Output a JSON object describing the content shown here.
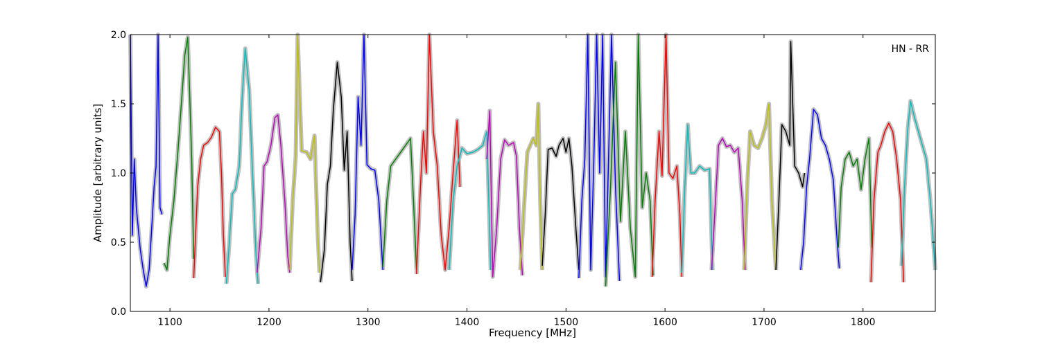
{
  "chart_data": {
    "type": "line",
    "title": "",
    "xlabel": "Frequency [MHz]",
    "ylabel": "Amplitude [arbitrary units]",
    "xlim": [
      1060,
      1873
    ],
    "ylim": [
      0.0,
      2.0
    ],
    "xticks": [
      1100,
      1200,
      1300,
      1400,
      1500,
      1600,
      1700,
      1800
    ],
    "xtick_labels": [
      "1100",
      "1200",
      "1300",
      "1400",
      "1500",
      "1600",
      "1700",
      "1800"
    ],
    "yticks": [
      0.0,
      0.5,
      1.0,
      1.5,
      2.0
    ],
    "ytick_labels": [
      "0.0",
      "0.5",
      "1.0",
      "1.5",
      "2.0"
    ],
    "grid": false,
    "annotation": "HN - RR",
    "annotation_position": "top-right",
    "background_series_color": "#bfbfbf",
    "series": [
      {
        "color": "#0000ff",
        "x": [
          1060,
          1062,
          1064,
          1066,
          1070,
          1073,
          1076,
          1079,
          1082,
          1084,
          1086,
          1088,
          1090,
          1092
        ],
        "y": [
          2.0,
          0.55,
          1.1,
          0.75,
          0.45,
          0.3,
          0.18,
          0.3,
          0.65,
          0.9,
          1.05,
          2.0,
          0.75,
          0.7
        ]
      },
      {
        "color": "#008000",
        "x": [
          1094,
          1097,
          1100,
          1104,
          1108,
          1112,
          1115,
          1118,
          1120,
          1122,
          1124
        ],
        "y": [
          0.35,
          0.3,
          0.55,
          0.8,
          1.15,
          1.55,
          1.85,
          1.98,
          1.55,
          1.1,
          0.38
        ]
      },
      {
        "color": "#ff0000",
        "x": [
          1124,
          1128,
          1131,
          1134,
          1138,
          1142,
          1146,
          1150,
          1152,
          1154,
          1156
        ],
        "y": [
          0.24,
          0.9,
          1.1,
          1.2,
          1.22,
          1.26,
          1.33,
          1.3,
          1.0,
          0.55,
          0.25
        ]
      },
      {
        "color": "#00bfbf",
        "x": [
          1157,
          1160,
          1163,
          1166,
          1170,
          1173,
          1176,
          1180,
          1184,
          1187,
          1189
        ],
        "y": [
          0.2,
          0.5,
          0.85,
          0.88,
          1.05,
          1.55,
          1.9,
          1.6,
          0.9,
          0.4,
          0.2
        ]
      },
      {
        "color": "#bf00bf",
        "x": [
          1188,
          1192,
          1195,
          1198,
          1202,
          1206,
          1209,
          1212,
          1216,
          1219,
          1221
        ],
        "y": [
          0.28,
          0.6,
          1.05,
          1.08,
          1.2,
          1.4,
          1.42,
          1.2,
          0.8,
          0.4,
          0.28
        ]
      },
      {
        "color": "#bfbf00",
        "x": [
          1221,
          1224,
          1227,
          1229,
          1233,
          1238,
          1242,
          1246,
          1249,
          1251
        ],
        "y": [
          0.3,
          0.8,
          1.12,
          2.0,
          1.16,
          1.15,
          1.1,
          1.27,
          0.6,
          0.28
        ]
      },
      {
        "color": "#000000",
        "x": [
          1252,
          1256,
          1259,
          1262,
          1265,
          1269,
          1273,
          1276,
          1279,
          1282,
          1284
        ],
        "y": [
          0.21,
          0.45,
          0.92,
          1.05,
          1.45,
          1.8,
          1.55,
          1.02,
          1.3,
          0.5,
          0.22
        ]
      },
      {
        "color": "#0000ff",
        "x": [
          1284,
          1287,
          1290,
          1293,
          1296,
          1299,
          1303,
          1307,
          1311,
          1315
        ],
        "y": [
          0.3,
          0.7,
          1.55,
          1.2,
          2.0,
          1.06,
          1.03,
          1.02,
          0.8,
          0.3
        ]
      },
      {
        "color": "#008000",
        "x": [
          1315,
          1319,
          1323,
          1328,
          1333,
          1338,
          1343,
          1346,
          1349
        ],
        "y": [
          0.32,
          0.8,
          1.05,
          1.1,
          1.15,
          1.2,
          1.25,
          0.8,
          0.3
        ]
      },
      {
        "color": "#ff0000",
        "x": [
          1349,
          1353,
          1356,
          1359,
          1362,
          1366,
          1370,
          1374,
          1378,
          1382,
          1386,
          1390,
          1393
        ],
        "y": [
          0.27,
          0.9,
          1.3,
          1.0,
          2.0,
          1.3,
          1.05,
          0.55,
          0.3,
          0.6,
          1.0,
          1.38,
          0.9
        ]
      },
      {
        "color": "#00bfbf",
        "x": [
          1382,
          1386,
          1390,
          1395,
          1400,
          1406,
          1411,
          1416,
          1420,
          1422,
          1424
        ],
        "y": [
          0.3,
          0.8,
          1.05,
          1.18,
          1.14,
          1.15,
          1.17,
          1.2,
          1.3,
          0.8,
          0.3
        ]
      },
      {
        "color": "#bf00bf",
        "x": [
          1420,
          1423,
          1426,
          1430,
          1434,
          1438,
          1442,
          1447,
          1450,
          1453,
          1456
        ],
        "y": [
          1.1,
          1.45,
          0.25,
          0.6,
          1.1,
          1.24,
          1.2,
          1.22,
          1.12,
          0.6,
          0.26
        ]
      },
      {
        "color": "#bfbf00",
        "x": [
          1454,
          1458,
          1461,
          1464,
          1467,
          1470,
          1472,
          1474,
          1476
        ],
        "y": [
          0.3,
          0.8,
          1.15,
          1.2,
          1.25,
          1.2,
          1.5,
          0.8,
          0.3
        ]
      },
      {
        "color": "#000000",
        "x": [
          1476,
          1479,
          1482,
          1486,
          1490,
          1493,
          1497,
          1500,
          1503,
          1506,
          1510,
          1513
        ],
        "y": [
          0.33,
          0.7,
          1.17,
          1.18,
          1.12,
          1.2,
          1.25,
          1.15,
          1.25,
          1.05,
          0.6,
          0.3
        ]
      },
      {
        "color": "#0000ff",
        "x": [
          1513,
          1516,
          1519,
          1522,
          1525,
          1528,
          1531,
          1534,
          1537,
          1540,
          1543,
          1546,
          1550,
          1554
        ],
        "y": [
          0.24,
          0.8,
          1.1,
          2.0,
          0.3,
          1.05,
          2.0,
          1.0,
          2.0,
          0.25,
          1.1,
          2.0,
          0.9,
          0.22
        ]
      },
      {
        "color": "#008000",
        "x": [
          1540,
          1545,
          1550,
          1555,
          1560,
          1565,
          1570,
          1573,
          1577,
          1581,
          1585,
          1588
        ],
        "y": [
          0.18,
          0.9,
          1.8,
          0.65,
          1.3,
          0.6,
          0.25,
          2.0,
          0.75,
          1.0,
          0.8,
          0.26
        ]
      },
      {
        "color": "#ff0000",
        "x": [
          1587,
          1590,
          1594,
          1597,
          1601,
          1604,
          1608,
          1612,
          1615,
          1617
        ],
        "y": [
          0.25,
          0.8,
          1.3,
          0.98,
          2.0,
          1.0,
          0.96,
          1.05,
          0.7,
          0.25
        ]
      },
      {
        "color": "#00bfbf",
        "x": [
          1617,
          1620,
          1623,
          1626,
          1630,
          1635,
          1640,
          1645,
          1648
        ],
        "y": [
          0.28,
          0.9,
          1.35,
          1.0,
          1.0,
          1.05,
          1.02,
          1.03,
          0.3
        ]
      },
      {
        "color": "#bf00bf",
        "x": [
          1647,
          1651,
          1654,
          1658,
          1662,
          1666,
          1670,
          1674,
          1678,
          1681
        ],
        "y": [
          0.3,
          0.8,
          1.2,
          1.25,
          1.19,
          1.2,
          1.15,
          1.18,
          0.8,
          0.3
        ]
      },
      {
        "color": "#bfbf00",
        "x": [
          1680,
          1683,
          1686,
          1690,
          1694,
          1698,
          1702,
          1705,
          1708,
          1712
        ],
        "y": [
          0.3,
          0.9,
          1.3,
          1.2,
          1.18,
          1.25,
          1.35,
          1.5,
          0.8,
          0.3
        ]
      },
      {
        "color": "#000000",
        "x": [
          1712,
          1715,
          1718,
          1722,
          1726,
          1727,
          1731,
          1735,
          1739,
          1741
        ],
        "y": [
          0.3,
          0.8,
          1.35,
          1.3,
          1.2,
          1.95,
          1.05,
          1.0,
          0.9,
          1.0
        ]
      },
      {
        "color": "#0000ff",
        "x": [
          1737,
          1740,
          1743,
          1746,
          1750,
          1754,
          1758,
          1762,
          1766,
          1770,
          1774,
          1776
        ],
        "y": [
          0.3,
          0.5,
          0.9,
          1.1,
          1.46,
          1.42,
          1.25,
          1.2,
          1.1,
          0.95,
          0.5,
          0.31
        ]
      },
      {
        "color": "#008000",
        "x": [
          1775,
          1778,
          1782,
          1786,
          1790,
          1794,
          1798,
          1802,
          1806,
          1809
        ],
        "y": [
          0.46,
          0.9,
          1.1,
          1.15,
          1.05,
          1.1,
          0.88,
          1.1,
          1.25,
          0.46
        ]
      },
      {
        "color": "#ff0000",
        "x": [
          1808,
          1811,
          1815,
          1818,
          1822,
          1826,
          1830,
          1834,
          1838,
          1841
        ],
        "y": [
          0.21,
          0.8,
          1.15,
          1.2,
          1.3,
          1.36,
          1.3,
          1.1,
          0.8,
          0.21
        ]
      },
      {
        "color": "#00bfbf",
        "x": [
          1839,
          1842,
          1845,
          1848,
          1852,
          1856,
          1860,
          1864,
          1868,
          1873
        ],
        "y": [
          0.33,
          0.9,
          1.3,
          1.52,
          1.4,
          1.3,
          1.2,
          1.1,
          0.8,
          0.3
        ]
      }
    ]
  }
}
